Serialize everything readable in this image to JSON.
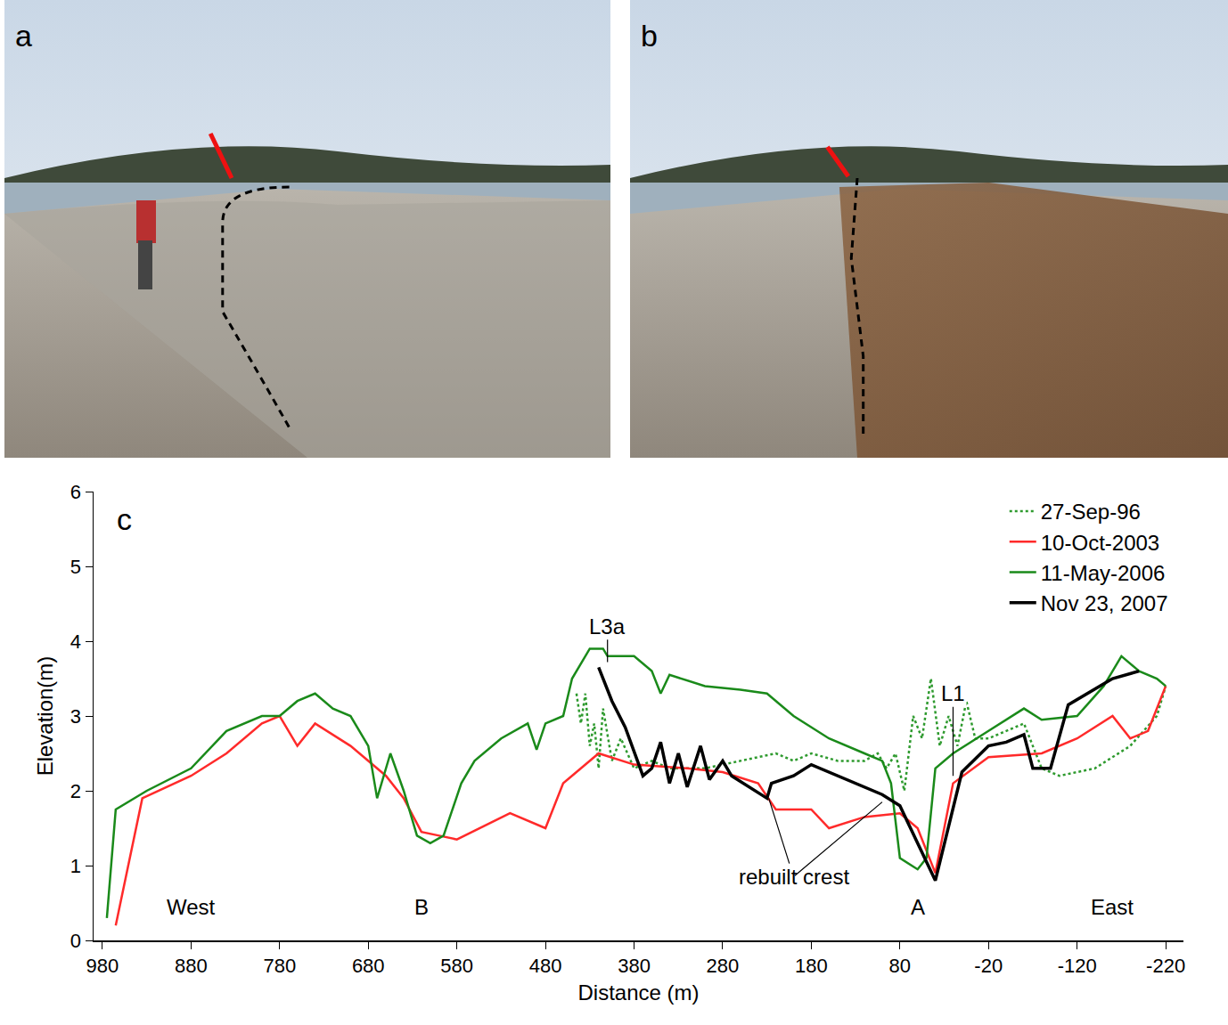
{
  "panel_letters": [
    "a",
    "b"
  ],
  "chart_data": {
    "type": "line",
    "panel_label": "c",
    "x_label": "Distance (m)",
    "y_label": "Elevation(m)",
    "xlim": [
      990,
      -240
    ],
    "ylim": [
      0,
      6
    ],
    "xticks": [
      980,
      880,
      780,
      680,
      580,
      480,
      380,
      280,
      180,
      80,
      -20,
      -120,
      -220
    ],
    "yticks": [
      0,
      1,
      2,
      3,
      4,
      5,
      6
    ],
    "grid": false,
    "legend": "top right",
    "series": [
      {
        "name": "27-Sep-96",
        "color": "#2e9a2e",
        "line_style": "dotted",
        "x": [
          445,
          440,
          435,
          430,
          425,
          420,
          415,
          405,
          395,
          380,
          360,
          340,
          300,
          260,
          220,
          200,
          180,
          150,
          120,
          105,
          95,
          85,
          75,
          65,
          55,
          45,
          35,
          25,
          15,
          5,
          -5,
          -20,
          -40,
          -60,
          -80,
          -100,
          -140,
          -180,
          -210,
          -220
        ],
        "values": [
          3.3,
          2.9,
          3.3,
          2.6,
          2.9,
          2.3,
          3.1,
          2.4,
          2.7,
          2.3,
          2.4,
          2.3,
          2.3,
          2.4,
          2.5,
          2.4,
          2.5,
          2.4,
          2.4,
          2.5,
          2.3,
          2.5,
          2.0,
          3.0,
          2.7,
          3.5,
          2.6,
          3.0,
          2.6,
          3.2,
          2.7,
          2.7,
          2.8,
          2.9,
          2.3,
          2.2,
          2.3,
          2.6,
          3.0,
          3.4
        ]
      },
      {
        "name": "10-Oct-2003",
        "color": "#ff2a2a",
        "line_style": "solid",
        "x": [
          965,
          935,
          880,
          840,
          800,
          780,
          760,
          740,
          700,
          660,
          640,
          620,
          600,
          580,
          520,
          480,
          460,
          420,
          380,
          320,
          280,
          240,
          220,
          180,
          160,
          120,
          80,
          60,
          40,
          20,
          -20,
          -80,
          -120,
          -160,
          -180,
          -200,
          -220
        ],
        "values": [
          0.2,
          1.9,
          2.2,
          2.5,
          2.9,
          3.0,
          2.6,
          2.9,
          2.6,
          2.2,
          1.9,
          1.45,
          1.4,
          1.35,
          1.7,
          1.5,
          2.1,
          2.5,
          2.35,
          2.3,
          2.25,
          2.1,
          1.75,
          1.75,
          1.5,
          1.65,
          1.7,
          1.5,
          0.9,
          2.1,
          2.45,
          2.5,
          2.7,
          3.0,
          2.7,
          2.8,
          3.4
        ]
      },
      {
        "name": "11-May-2006",
        "color": "#1a8a1a",
        "line_style": "solid",
        "x": [
          975,
          965,
          930,
          880,
          840,
          800,
          780,
          760,
          740,
          720,
          700,
          680,
          670,
          655,
          640,
          625,
          610,
          595,
          575,
          560,
          530,
          500,
          490,
          480,
          460,
          450,
          430,
          415,
          410,
          380,
          360,
          350,
          340,
          300,
          260,
          230,
          200,
          160,
          120,
          100,
          90,
          80,
          60,
          50,
          40,
          20,
          -20,
          -60,
          -80,
          -120,
          -150,
          -170,
          -190,
          -210,
          -220
        ],
        "values": [
          0.3,
          1.75,
          2.0,
          2.3,
          2.8,
          3.0,
          3.0,
          3.2,
          3.3,
          3.1,
          3.0,
          2.6,
          1.9,
          2.5,
          2.0,
          1.4,
          1.3,
          1.4,
          2.1,
          2.4,
          2.7,
          2.9,
          2.55,
          2.9,
          3.0,
          3.5,
          3.9,
          3.9,
          3.8,
          3.8,
          3.6,
          3.3,
          3.55,
          3.4,
          3.35,
          3.3,
          3.0,
          2.7,
          2.5,
          2.4,
          2.1,
          1.1,
          0.95,
          1.1,
          2.3,
          2.5,
          2.8,
          3.1,
          2.95,
          3.0,
          3.4,
          3.8,
          3.6,
          3.5,
          3.4
        ]
      },
      {
        "name": "Nov 23, 2007",
        "color": "#000000",
        "line_style": "solid",
        "x": [
          420,
          405,
          390,
          370,
          360,
          350,
          340,
          330,
          320,
          305,
          295,
          280,
          270,
          230,
          225,
          200,
          180,
          140,
          100,
          80,
          40,
          10,
          -20,
          -40,
          -60,
          -70,
          -90,
          -110,
          -160,
          -190
        ],
        "values": [
          3.65,
          3.2,
          2.85,
          2.2,
          2.3,
          2.65,
          2.1,
          2.5,
          2.05,
          2.6,
          2.15,
          2.4,
          2.2,
          1.9,
          2.1,
          2.2,
          2.35,
          2.15,
          1.95,
          1.8,
          0.8,
          2.25,
          2.6,
          2.65,
          2.75,
          2.3,
          2.3,
          3.15,
          3.5,
          3.6
        ]
      }
    ],
    "annotations": [
      {
        "text": "L3a",
        "x": 410,
        "y": 4.2,
        "pointers": [
          [
            410,
            3.72
          ]
        ]
      },
      {
        "text": "L1",
        "x": 20,
        "y": 3.3,
        "pointers": [
          [
            20,
            2.2
          ]
        ]
      },
      {
        "text": "rebuilt crest",
        "x": 200,
        "y": 0.85,
        "pointers": [
          [
            228,
            1.9
          ],
          [
            100,
            1.85
          ]
        ]
      },
      {
        "text": "West",
        "x": 880,
        "y": 0.45
      },
      {
        "text": "B",
        "x": 620,
        "y": 0.45
      },
      {
        "text": "A",
        "x": 60,
        "y": 0.45
      },
      {
        "text": "East",
        "x": -160,
        "y": 0.45
      }
    ]
  }
}
